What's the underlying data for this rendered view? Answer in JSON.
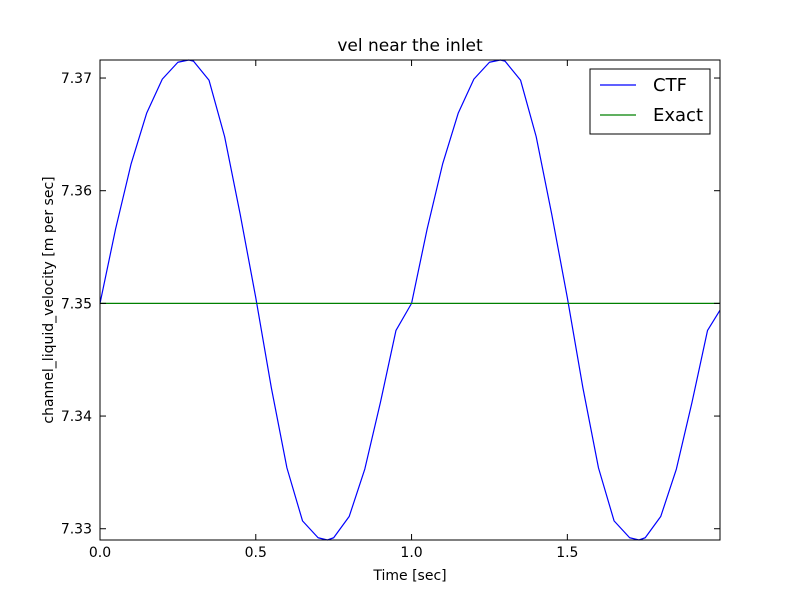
{
  "chart_data": {
    "type": "line",
    "title": "vel near the inlet",
    "xlabel": "Time [sec]",
    "ylabel": "channel_liquid_velocity [m per sec]",
    "xlim": [
      0.0,
      1.99
    ],
    "ylim": [
      7.329,
      7.3716
    ],
    "xticks": [
      0.0,
      0.5,
      1.0,
      1.5
    ],
    "xtick_labels": [
      "0.0",
      "0.5",
      "1.0",
      "1.5"
    ],
    "yticks": [
      7.33,
      7.34,
      7.35,
      7.36,
      7.37
    ],
    "ytick_labels": [
      "7.33",
      "7.34",
      "7.35",
      "7.36",
      "7.37"
    ],
    "grid": false,
    "legend_position": "top-right",
    "series": [
      {
        "name": "CTF",
        "color": "#0000ff",
        "x": [
          0.0,
          0.05,
          0.1,
          0.15,
          0.2,
          0.25,
          0.285,
          0.3,
          0.35,
          0.4,
          0.45,
          0.5,
          0.55,
          0.6,
          0.65,
          0.7,
          0.73,
          0.75,
          0.8,
          0.85,
          0.9,
          0.95,
          1.0,
          1.05,
          1.1,
          1.15,
          1.2,
          1.25,
          1.285,
          1.3,
          1.35,
          1.4,
          1.45,
          1.5,
          1.55,
          1.6,
          1.65,
          1.7,
          1.73,
          1.75,
          1.8,
          1.85,
          1.9,
          1.95,
          1.99
        ],
        "y": [
          7.35,
          7.3566,
          7.3624,
          7.3669,
          7.3699,
          7.3714,
          7.3716,
          7.3715,
          7.3698,
          7.3648,
          7.3579,
          7.3505,
          7.3425,
          7.3354,
          7.3307,
          7.3292,
          7.329,
          7.3292,
          7.3311,
          7.3353,
          7.3412,
          7.3476,
          7.35,
          7.3566,
          7.3624,
          7.3669,
          7.3699,
          7.3714,
          7.3716,
          7.3715,
          7.3698,
          7.3648,
          7.3579,
          7.3505,
          7.3425,
          7.3354,
          7.3307,
          7.3292,
          7.329,
          7.3292,
          7.3311,
          7.3353,
          7.3412,
          7.3476,
          7.3494
        ]
      },
      {
        "name": "Exact",
        "color": "#008000",
        "x": [
          0.0,
          1.99
        ],
        "y": [
          7.35,
          7.35
        ]
      }
    ]
  }
}
